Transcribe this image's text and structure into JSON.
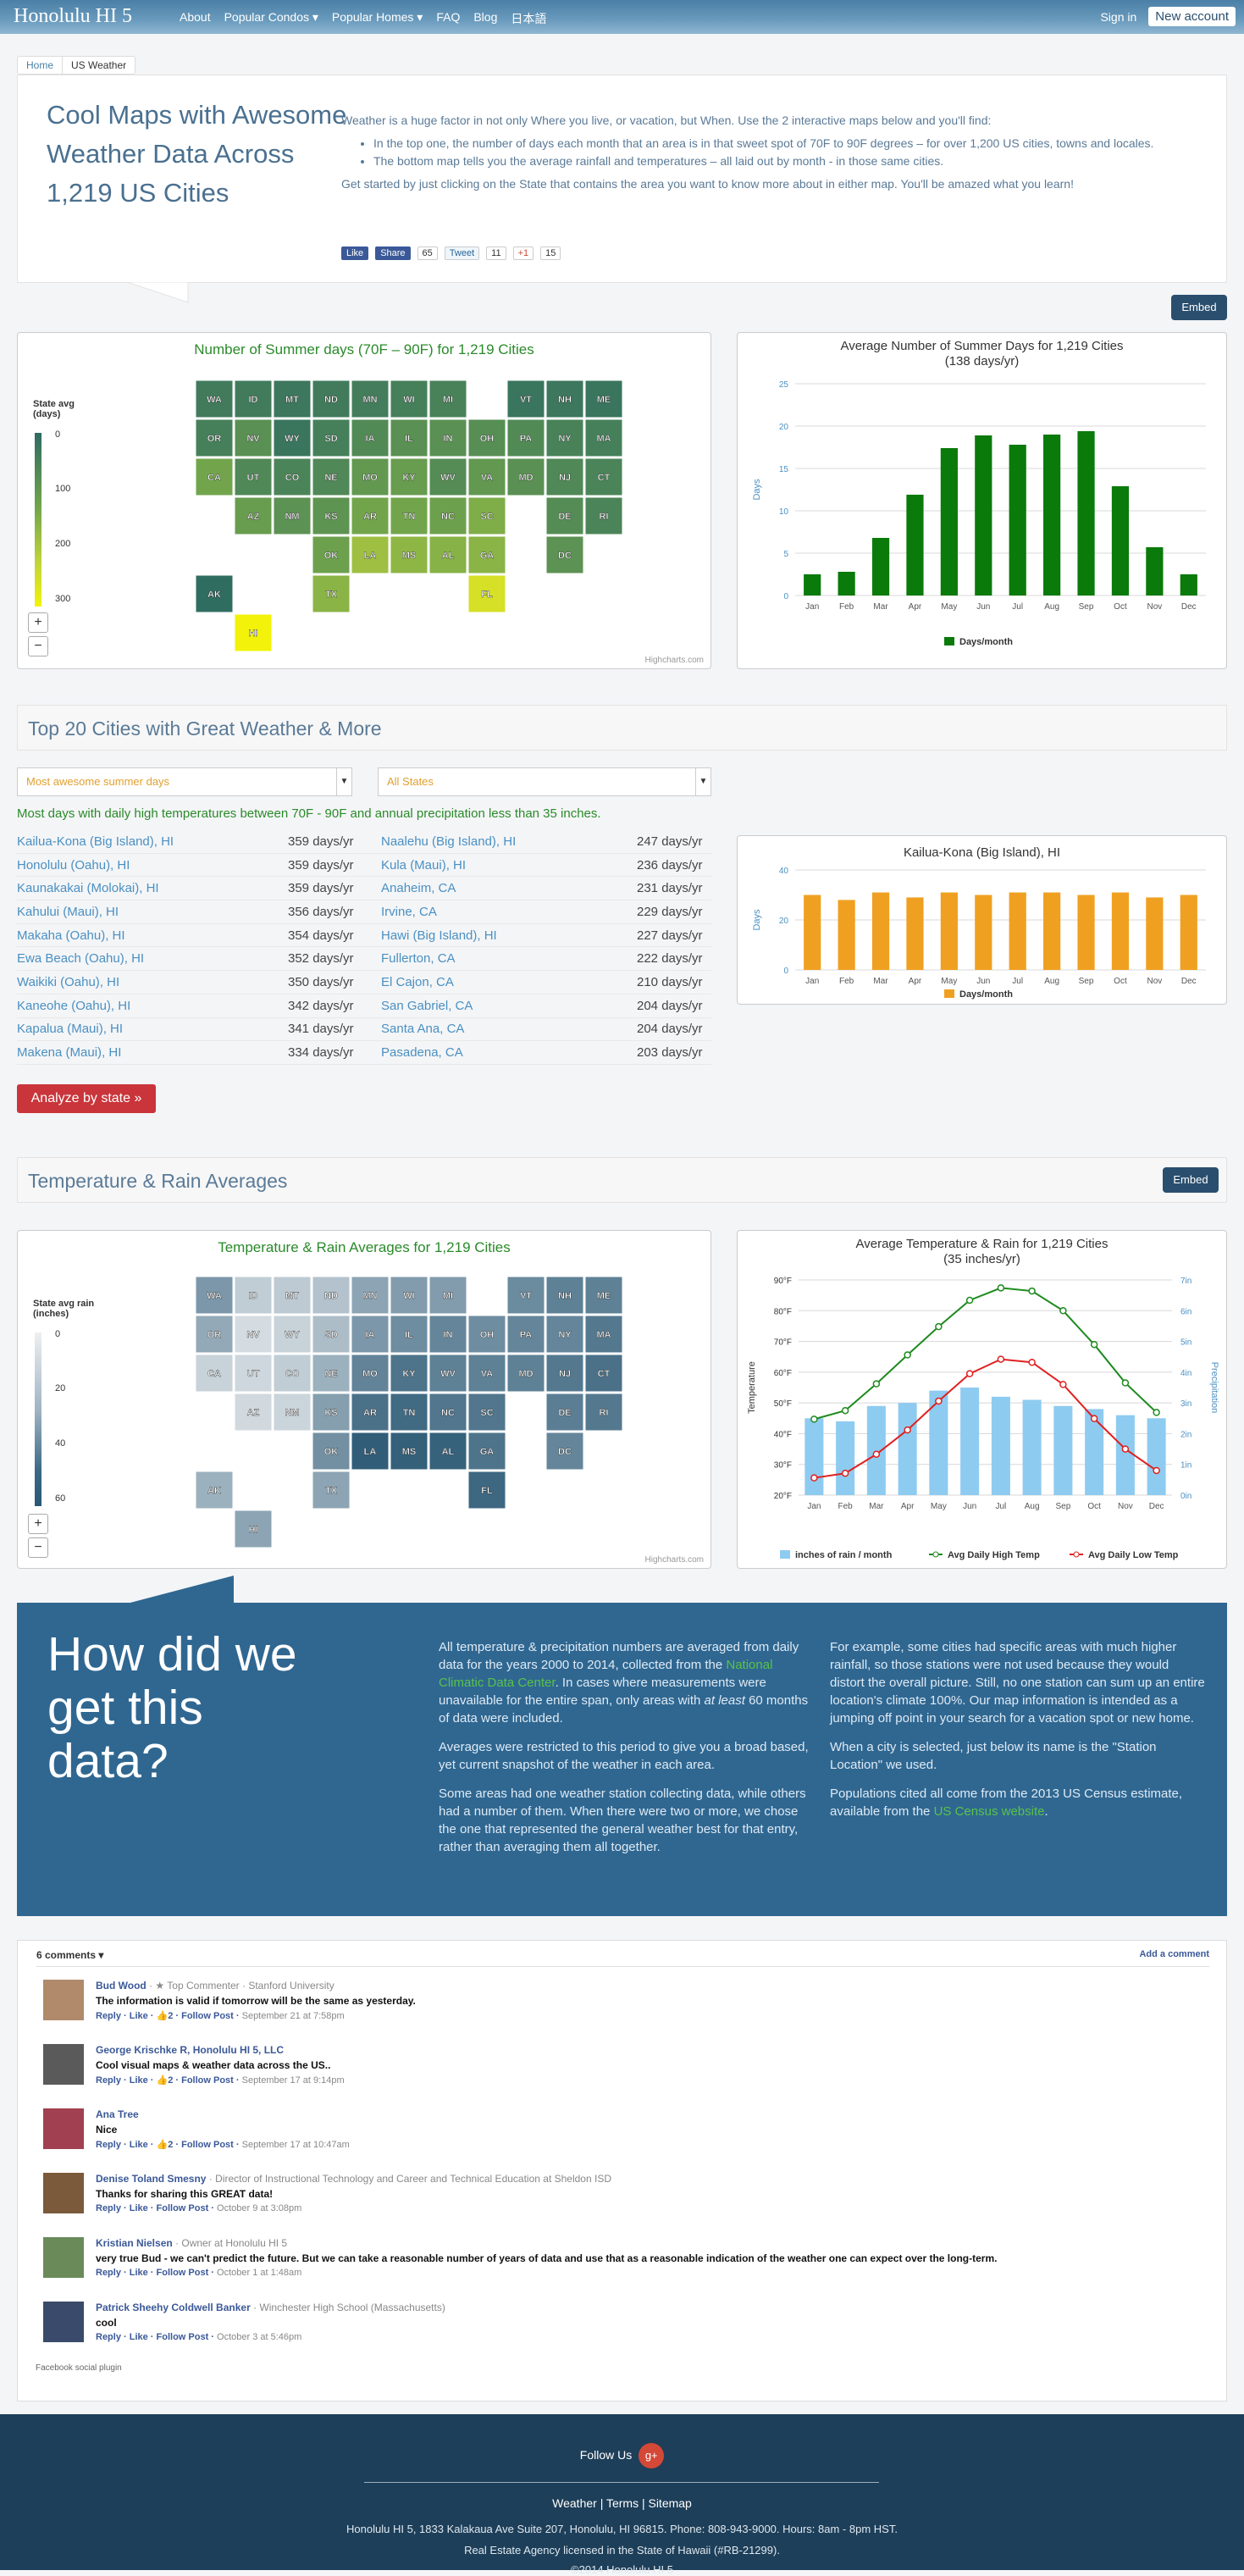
{
  "nav": {
    "logo": "Honolulu HI 5",
    "items": [
      "About",
      "Popular Condos ▾",
      "Popular Homes ▾",
      "FAQ",
      "Blog",
      "日本語"
    ],
    "signin": "Sign in",
    "new_account": "New account"
  },
  "breadcrumb": {
    "home": "Home",
    "current": "US Weather"
  },
  "intro": {
    "title": "Cool Maps with Awesome Weather Data Across 1,219 US Cities",
    "p1": "Weather is a huge factor in not only Where you live, or vacation, but When. Use the 2 interactive maps below and you'll find:",
    "b1": "In the top one, the number of days each month that an area is in that sweet spot of 70F to 90F degrees – for over 1,200 US cities, towns and locales.",
    "b2": "The bottom map tells you the average rainfall and temperatures – all laid out by month - in those same cities.",
    "p2": "Get started by just clicking on the State that contains the area you want to know more about in either map. You'll be amazed what you learn!",
    "social": {
      "like": "Like",
      "share": "Share",
      "share_count": "65",
      "tweet": "Tweet",
      "tweet_count": "11",
      "gplus": "+1",
      "gplus_count": "15"
    }
  },
  "embed_label": "Embed",
  "map1": {
    "title": "Number of Summer days (70F – 90F) for 1,219 Cities",
    "legend_title": "State avg (days)",
    "legend_ticks": [
      "0",
      "100",
      "200",
      "300"
    ],
    "credit": "Highcharts.com",
    "states": [
      "WA",
      "OR",
      "CA",
      "NV",
      "ID",
      "MT",
      "WY",
      "UT",
      "AZ",
      "NM",
      "CO",
      "ND",
      "SD",
      "NE",
      "KS",
      "OK",
      "TX",
      "MN",
      "IA",
      "MO",
      "AR",
      "LA",
      "WI",
      "IL",
      "MI",
      "IN",
      "OH",
      "KY",
      "TN",
      "MS",
      "AL",
      "GA",
      "FL",
      "SC",
      "NC",
      "VA",
      "WV",
      "PA",
      "NY",
      "ME",
      "VT",
      "NH",
      "MA",
      "RI",
      "CT",
      "NJ",
      "DE",
      "MD",
      "DC",
      "AK",
      "HI"
    ]
  },
  "chart1": {
    "title": "Average Number of Summer Days for 1,219 Cities",
    "subtitle": "(138 days/yr)",
    "ylabel": "Days",
    "legend": "Days/month"
  },
  "section2": {
    "heading": "Top 20 Cities with Great Weather & More",
    "select1": "Most awesome summer days",
    "select2": "All States",
    "subtext": "Most days with daily high temperatures between 70F - 90F and annual precipitation less than 35 inches.",
    "analyze": "Analyze by state »"
  },
  "cities": [
    {
      "n1": "Kailua-Kona (Big Island), HI",
      "v1": "359 days/yr",
      "n2": "Naalehu (Big Island), HI",
      "v2": "247 days/yr"
    },
    {
      "n1": "Honolulu (Oahu), HI",
      "v1": "359 days/yr",
      "n2": "Kula (Maui), HI",
      "v2": "236 days/yr"
    },
    {
      "n1": "Kaunakakai (Molokai), HI",
      "v1": "359 days/yr",
      "n2": "Anaheim, CA",
      "v2": "231 days/yr"
    },
    {
      "n1": "Kahului (Maui), HI",
      "v1": "356 days/yr",
      "n2": "Irvine, CA",
      "v2": "229 days/yr"
    },
    {
      "n1": "Makaha (Oahu), HI",
      "v1": "354 days/yr",
      "n2": "Hawi (Big Island), HI",
      "v2": "227 days/yr"
    },
    {
      "n1": "Ewa Beach (Oahu), HI",
      "v1": "352 days/yr",
      "n2": "Fullerton, CA",
      "v2": "222 days/yr"
    },
    {
      "n1": "Waikiki (Oahu), HI",
      "v1": "350 days/yr",
      "n2": "El Cajon, CA",
      "v2": "210 days/yr"
    },
    {
      "n1": "Kaneohe (Oahu), HI",
      "v1": "342 days/yr",
      "n2": "San Gabriel, CA",
      "v2": "204 days/yr"
    },
    {
      "n1": "Kapalua (Maui), HI",
      "v1": "341 days/yr",
      "n2": "Santa Ana, CA",
      "v2": "204 days/yr"
    },
    {
      "n1": "Makena (Maui), HI",
      "v1": "334 days/yr",
      "n2": "Pasadena, CA",
      "v2": "203 days/yr"
    }
  ],
  "chart2": {
    "title": "Kailua-Kona (Big Island), HI",
    "ylabel": "Days",
    "legend": "Days/month"
  },
  "section3": {
    "heading": "Temperature & Rain Averages"
  },
  "map2": {
    "title": "Temperature & Rain Averages for 1,219 Cities",
    "legend_title": "State avg rain (inches)",
    "legend_ticks": [
      "0",
      "20",
      "40",
      "60"
    ],
    "credit": "Highcharts.com"
  },
  "chart3": {
    "title": "Average Temperature & Rain for 1,219 Cities",
    "subtitle": "(35 inches/yr)",
    "ylabel_left": "Temperature",
    "ylabel_right": "Precipitation",
    "legend": [
      "inches of rain / month",
      "Avg Daily High Temp",
      "Avg Daily Low Temp"
    ]
  },
  "chart_data": [
    {
      "type": "bar",
      "title": "Average Number of Summer Days for 1,219 Cities",
      "subtitle": "(138 days/yr)",
      "categories": [
        "Jan",
        "Feb",
        "Mar",
        "Apr",
        "May",
        "Jun",
        "Jul",
        "Aug",
        "Sep",
        "Oct",
        "Nov",
        "Dec"
      ],
      "yticks": [
        "0",
        "5",
        "10",
        "15",
        "20",
        "25"
      ],
      "ylim": [
        0,
        25
      ],
      "ylabel": "Days",
      "series": [
        {
          "name": "Days/month",
          "values": [
            2.5,
            2.8,
            6.8,
            11.9,
            17.4,
            18.9,
            17.8,
            19.0,
            19.4,
            12.9,
            5.7,
            2.5
          ],
          "color": "#0a7a0a"
        }
      ],
      "grid": true,
      "legend": "bottom"
    },
    {
      "type": "bar",
      "title": "Kailua-Kona (Big Island), HI",
      "categories": [
        "Jan",
        "Feb",
        "Mar",
        "Apr",
        "May",
        "Jun",
        "Jul",
        "Aug",
        "Sep",
        "Oct",
        "Nov",
        "Dec"
      ],
      "yticks": [
        "0",
        "20",
        "40"
      ],
      "ylim": [
        0,
        40
      ],
      "ylabel": "Days",
      "series": [
        {
          "name": "Days/month",
          "values": [
            30,
            28,
            31,
            29,
            31,
            30,
            31,
            31,
            30,
            31,
            29,
            30
          ],
          "color": "#f0a020"
        }
      ],
      "grid": true,
      "legend": "bottom"
    },
    {
      "type": "line",
      "title": "Average Temperature & Rain for 1,219 Cities",
      "subtitle": "(35 inches/yr)",
      "categories": [
        "Jan",
        "Feb",
        "Mar",
        "Apr",
        "May",
        "Jun",
        "Jul",
        "Aug",
        "Sep",
        "Oct",
        "Nov",
        "Dec"
      ],
      "yticks_left": [
        "20°F",
        "30°F",
        "40°F",
        "50°F",
        "60°F",
        "70°F",
        "80°F",
        "90°F"
      ],
      "ylim_left": [
        20,
        90
      ],
      "yticks_right": [
        "0in",
        "1in",
        "2in",
        "3in",
        "4in",
        "5in",
        "6in",
        "7in"
      ],
      "ylim_right": [
        0,
        7
      ],
      "series": [
        {
          "name": "inches of rain / month",
          "kind": "bar",
          "axis": "right",
          "values": [
            2.5,
            2.4,
            2.9,
            3.0,
            3.4,
            3.5,
            3.2,
            3.1,
            2.9,
            2.8,
            2.6,
            2.5
          ],
          "color": "#8ecbf0"
        },
        {
          "name": "Avg Daily High Temp",
          "kind": "line",
          "axis": "left",
          "values": [
            44.7,
            47.5,
            56.2,
            65.6,
            74.8,
            83.4,
            87.4,
            86.4,
            80.0,
            69.0,
            56.5,
            46.9
          ],
          "color": "#1e8a1e"
        },
        {
          "name": "Avg Daily Low Temp",
          "kind": "line",
          "axis": "left",
          "values": [
            25.6,
            27.1,
            33.3,
            41.2,
            50.6,
            59.5,
            64.2,
            63.2,
            56.0,
            44.9,
            35.0,
            28.0
          ],
          "color": "#e02020"
        }
      ],
      "grid": true,
      "legend": "bottom"
    }
  ],
  "about": {
    "title": "How did we get this data?",
    "c1p1a": "All temperature & precipitation numbers are averaged from daily data for the years 2000 to 2014, collected from the ",
    "c1p1link": "National Climatic Data Center",
    "c1p1b": ". In cases where measurements were unavailable for the entire span, only areas with ",
    "c1p1em": "at least",
    "c1p1c": " 60 months of data were included.",
    "c1p2": "Averages were restricted to this period to give you a broad based, yet current snapshot of the weather in each area.",
    "c1p3": "Some areas had one weather station collecting data, while others had a number of them. When there were two or more, we chose the one that represented the general weather best for that entry, rather than averaging them all together.",
    "c2p1": "For example, some cities had specific areas with much higher rainfall, so those stations were not used because they would distort the overall picture. Still, no one station can sum up an entire location's climate 100%. Our map information is intended as a jumping off point in your search for a vacation spot or new home.",
    "c2p2": "When a city is selected, just below its name is the \"Station Location\" we used.",
    "c2p3a": "Populations cited all come from the 2013 US Census estimate, available from the ",
    "c2p3link": "US Census website",
    "c2p3b": "."
  },
  "comments": {
    "count": "6 comments ▾",
    "add": "Add a comment",
    "fb_plugin": "Facebook social plugin",
    "items": [
      {
        "name": "Bud Wood",
        "meta": " · ★ Top Commenter · Stanford University",
        "text": "The information is valid if tomorrow will be the same as yesterday.",
        "actions": "Reply · Like · 👍2 · Follow Post · ",
        "date": "September 21 at 7:58pm"
      },
      {
        "name": "George Krischke R, Honolulu HI 5, LLC",
        "meta": "",
        "text": "Cool visual maps & weather data across the US..",
        "actions": "Reply · Like · 👍2 · Follow Post · ",
        "date": "September 17 at 9:14pm"
      },
      {
        "name": "Ana Tree",
        "meta": "",
        "text": "Nice",
        "actions": "Reply · Like · 👍2 · Follow Post · ",
        "date": "September 17 at 10:47am"
      },
      {
        "name": "Denise Toland Smesny",
        "meta": " · Director of Instructional Technology and Career and Technical Education at Sheldon ISD",
        "text": "Thanks for sharing this GREAT data!",
        "actions": "Reply · Like · Follow Post · ",
        "date": "October 9 at 3:08pm"
      },
      {
        "name": "Kristian Nielsen",
        "meta": " · Owner at Honolulu HI 5",
        "text": "very true Bud - we can't predict the future. But we can take a reasonable number of years of data and use that as a reasonable indication of the weather one can expect over the long-term.",
        "actions": "Reply · Like · Follow Post · ",
        "date": "October 1 at 1:48am"
      },
      {
        "name": "Patrick Sheehy Coldwell Banker",
        "meta": " · Winchester High School (Massachusetts)",
        "text": "cool",
        "actions": "Reply · Like · Follow Post · ",
        "date": "October 3 at 5:46pm"
      }
    ]
  },
  "footer": {
    "follow": "Follow Us",
    "gplus": "g+",
    "links": "Weather | Terms | Sitemap",
    "line1": "Honolulu HI 5, 1833 Kalakaua Ave Suite 207, Honolulu, HI 96815. Phone: 808-943-9000. Hours: 8am - 8pm HST.",
    "line2": "Real Estate Agency licensed in the State of Hawaii (#RB-21299).",
    "line3": "©2014 Honolulu HI 5"
  }
}
